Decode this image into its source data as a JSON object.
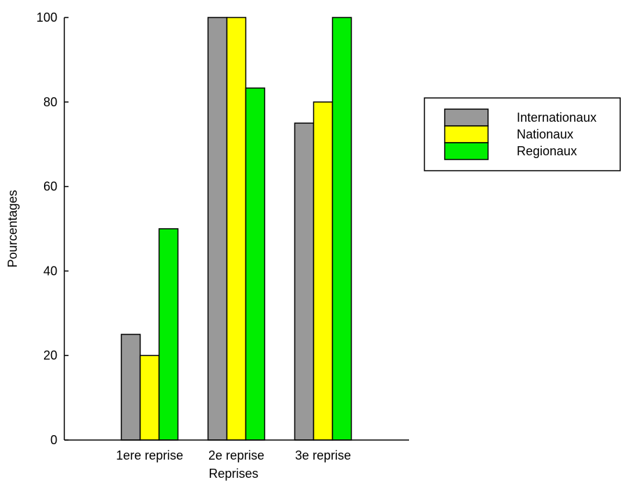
{
  "chart_data": {
    "type": "bar",
    "title": "",
    "xlabel": "Reprises",
    "ylabel": "Pourcentages",
    "categories": [
      "1ere reprise",
      "2e reprise",
      "3e reprise"
    ],
    "series": [
      {
        "name": "Internationaux",
        "color": "#999999",
        "values": [
          25,
          100,
          75
        ]
      },
      {
        "name": "Nationaux",
        "color": "#ffff00",
        "values": [
          20,
          100,
          80
        ]
      },
      {
        "name": "Regionaux",
        "color": "#00ee00",
        "values": [
          50,
          83.3,
          100
        ]
      }
    ],
    "ylim": [
      0,
      100
    ],
    "yticks": [
      "0",
      "20",
      "40",
      "60",
      "80",
      "100"
    ],
    "grid": false,
    "legend_position": "right"
  }
}
